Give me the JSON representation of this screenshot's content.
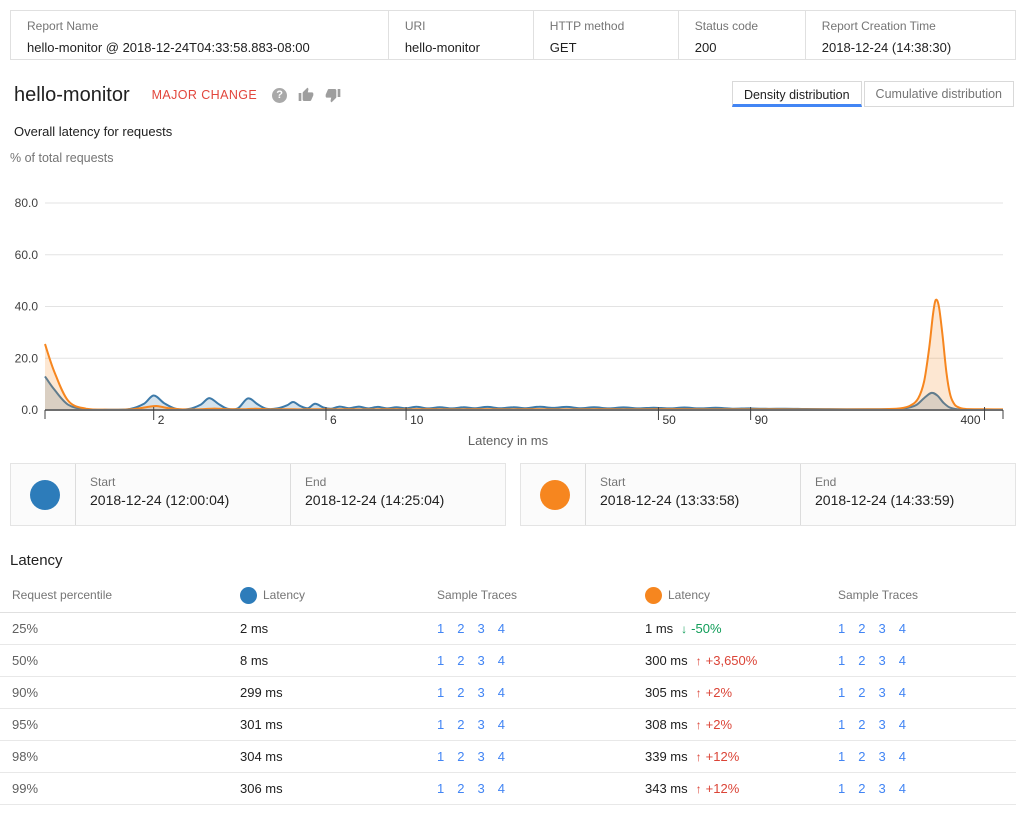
{
  "header": {
    "fields": [
      {
        "label": "Report Name",
        "value": "hello-monitor @ 2018-12-24T04:33:58.883-08:00"
      },
      {
        "label": "URI",
        "value": "hello-monitor"
      },
      {
        "label": "HTTP method",
        "value": "GET"
      },
      {
        "label": "Status code",
        "value": "200"
      },
      {
        "label": "Report Creation Time",
        "value": "2018-12-24 (14:38:30)"
      }
    ]
  },
  "title": {
    "name": "hello-monitor",
    "badge": "MAJOR CHANGE",
    "subtitle": "Overall latency for requests",
    "y_axis_caption": "% of total requests"
  },
  "tabs": [
    {
      "label": "Density distribution",
      "active": true
    },
    {
      "label": "Cumulative distribution",
      "active": false
    }
  ],
  "chart_data": {
    "type": "area",
    "x_scale": "log",
    "xlim": [
      1,
      450
    ],
    "ylim": [
      0,
      80
    ],
    "xlabel": "Latency in ms",
    "ylabel": "% of total requests",
    "grid": true,
    "y_ticks": [
      {
        "v": 0,
        "label": "0.0"
      },
      {
        "v": 20,
        "label": "20.0"
      },
      {
        "v": 40,
        "label": "40.0"
      },
      {
        "v": 60,
        "label": "60.0"
      },
      {
        "v": 80,
        "label": "80.0"
      }
    ],
    "x_ticks": [
      2,
      6,
      10,
      50,
      90,
      400
    ],
    "series": [
      {
        "name": "baseline",
        "color": "#3d7aa9",
        "fill": "rgba(61,122,169,0.22)",
        "points": [
          [
            1,
            13
          ],
          [
            1.06,
            8
          ],
          [
            1.16,
            2
          ],
          [
            1.3,
            0.3
          ],
          [
            1.5,
            0.08
          ],
          [
            1.72,
            0.4
          ],
          [
            1.88,
            2.4
          ],
          [
            2,
            5.6
          ],
          [
            2.14,
            2.6
          ],
          [
            2.3,
            0.5
          ],
          [
            2.5,
            0.4
          ],
          [
            2.7,
            2.1
          ],
          [
            2.85,
            4.6
          ],
          [
            3.02,
            2.4
          ],
          [
            3.2,
            0.5
          ],
          [
            3.42,
            0.6
          ],
          [
            3.65,
            4.5
          ],
          [
            3.88,
            2.2
          ],
          [
            4.1,
            0.5
          ],
          [
            4.4,
            0.6
          ],
          [
            4.68,
            1.8
          ],
          [
            4.87,
            3.1
          ],
          [
            5.1,
            1.5
          ],
          [
            5.35,
            0.7
          ],
          [
            5.6,
            2.4
          ],
          [
            5.9,
            1
          ],
          [
            6.2,
            0.5
          ],
          [
            6.55,
            1.3
          ],
          [
            6.95,
            0.7
          ],
          [
            7.4,
            1.3
          ],
          [
            7.85,
            0.6
          ],
          [
            8.35,
            1.2
          ],
          [
            8.85,
            0.6
          ],
          [
            9.4,
            1.05
          ],
          [
            10,
            0.65
          ],
          [
            10.7,
            1.25
          ],
          [
            11.5,
            0.6
          ],
          [
            12.4,
            1.1
          ],
          [
            13.4,
            0.6
          ],
          [
            14.4,
            1.05
          ],
          [
            15.5,
            0.7
          ],
          [
            16.8,
            1.2
          ],
          [
            18.2,
            0.65
          ],
          [
            19.8,
            1.1
          ],
          [
            21.5,
            0.7
          ],
          [
            23.4,
            1.25
          ],
          [
            25.5,
            0.8
          ],
          [
            27.8,
            1.2
          ],
          [
            30.4,
            0.7
          ],
          [
            33.2,
            1.05
          ],
          [
            36.4,
            0.6
          ],
          [
            40,
            1
          ],
          [
            44,
            0.6
          ],
          [
            48.5,
            0.9
          ],
          [
            53.5,
            0.6
          ],
          [
            59,
            0.95
          ],
          [
            65,
            0.6
          ],
          [
            72,
            0.85
          ],
          [
            80,
            0.5
          ],
          [
            89,
            0.6
          ],
          [
            99,
            0.45
          ],
          [
            112,
            0.5
          ],
          [
            127,
            0.4
          ],
          [
            145,
            0.35
          ],
          [
            166,
            0.3
          ],
          [
            192,
            0.3
          ],
          [
            218,
            0.35
          ],
          [
            240,
            0.6
          ],
          [
            258,
            1.8
          ],
          [
            272,
            4.6
          ],
          [
            285,
            6.6
          ],
          [
            296,
            5.6
          ],
          [
            308,
            2.8
          ],
          [
            320,
            1
          ],
          [
            334,
            0.35
          ],
          [
            352,
            0.12
          ],
          [
            385,
            0.06
          ],
          [
            420,
            0.05
          ],
          [
            450,
            0.05
          ]
        ]
      },
      {
        "name": "comparison",
        "color": "#f6861f",
        "fill": "rgba(246,134,31,0.20)",
        "points": [
          [
            1,
            25.5
          ],
          [
            1.06,
            15
          ],
          [
            1.16,
            3.5
          ],
          [
            1.3,
            0.5
          ],
          [
            1.5,
            0.12
          ],
          [
            1.75,
            0.3
          ],
          [
            1.95,
            1.3
          ],
          [
            2.05,
            1.5
          ],
          [
            2.2,
            0.7
          ],
          [
            2.4,
            0.25
          ],
          [
            2.7,
            0.3
          ],
          [
            2.95,
            0.55
          ],
          [
            3.2,
            0.3
          ],
          [
            3.6,
            0.3
          ],
          [
            3.85,
            0.5
          ],
          [
            4.2,
            0.25
          ],
          [
            4.7,
            0.3
          ],
          [
            5.1,
            0.25
          ],
          [
            5.7,
            0.3
          ],
          [
            6.3,
            0.25
          ],
          [
            7,
            0.3
          ],
          [
            8,
            0.25
          ],
          [
            9,
            0.3
          ],
          [
            10,
            0.25
          ],
          [
            11.5,
            0.3
          ],
          [
            13.5,
            0.25
          ],
          [
            16,
            0.3
          ],
          [
            19,
            0.25
          ],
          [
            23,
            0.3
          ],
          [
            28,
            0.25
          ],
          [
            34,
            0.3
          ],
          [
            42,
            0.25
          ],
          [
            52,
            0.3
          ],
          [
            65,
            0.25
          ],
          [
            80,
            0.25
          ],
          [
            100,
            0.25
          ],
          [
            125,
            0.2
          ],
          [
            155,
            0.2
          ],
          [
            190,
            0.25
          ],
          [
            215,
            0.35
          ],
          [
            235,
            0.7
          ],
          [
            250,
            1.8
          ],
          [
            262,
            4.5
          ],
          [
            272,
            11
          ],
          [
            281,
            24
          ],
          [
            288,
            37
          ],
          [
            293,
            42.5
          ],
          [
            299,
            40
          ],
          [
            306,
            29
          ],
          [
            314,
            14
          ],
          [
            322,
            5.5
          ],
          [
            331,
            2
          ],
          [
            342,
            0.8
          ],
          [
            356,
            0.4
          ],
          [
            375,
            0.3
          ],
          [
            400,
            0.28
          ],
          [
            425,
            0.25
          ],
          [
            450,
            0.22
          ]
        ]
      }
    ]
  },
  "legend": [
    {
      "series": "baseline",
      "color": "#2d7cba",
      "start_label": "Start",
      "start": "2018-12-24 (12:00:04)",
      "end_label": "End",
      "end": "2018-12-24 (14:25:04)"
    },
    {
      "series": "comparison",
      "color": "#f6861f",
      "start_label": "Start",
      "start": "2018-12-24 (13:33:58)",
      "end_label": "End",
      "end": "2018-12-24 (14:33:59)"
    }
  ],
  "table": {
    "section_title": "Latency",
    "headers": {
      "percentile": "Request percentile",
      "latency": "Latency",
      "sample_traces": "Sample Traces"
    },
    "trace_links": [
      "1",
      "2",
      "3",
      "4"
    ],
    "rows": [
      {
        "percentile": "25%",
        "baseline_latency": "2 ms",
        "comparison_latency": "1 ms",
        "delta": "-50%",
        "direction": "down"
      },
      {
        "percentile": "50%",
        "baseline_latency": "8 ms",
        "comparison_latency": "300 ms",
        "delta": "+3,650%",
        "direction": "up"
      },
      {
        "percentile": "90%",
        "baseline_latency": "299 ms",
        "comparison_latency": "305 ms",
        "delta": "+2%",
        "direction": "up"
      },
      {
        "percentile": "95%",
        "baseline_latency": "301 ms",
        "comparison_latency": "308 ms",
        "delta": "+2%",
        "direction": "up"
      },
      {
        "percentile": "98%",
        "baseline_latency": "304 ms",
        "comparison_latency": "339 ms",
        "delta": "+12%",
        "direction": "up"
      },
      {
        "percentile": "99%",
        "baseline_latency": "306 ms",
        "comparison_latency": "343 ms",
        "delta": "+12%",
        "direction": "up"
      }
    ]
  },
  "colors": {
    "accent_blue": "#4285f4",
    "series_blue": "#2d7cba",
    "series_orange": "#f6861f",
    "badge_red": "#e2463c",
    "increase_red": "#db4437",
    "decrease_green": "#0f9d58"
  }
}
